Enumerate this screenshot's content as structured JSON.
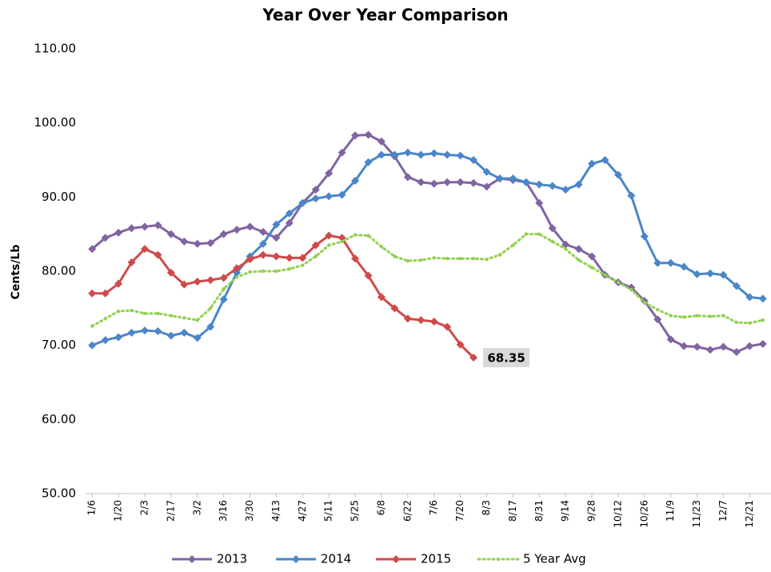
{
  "chart_data": {
    "type": "line",
    "title": "Year Over Year Comparison",
    "y_label": "Cents/Lb",
    "categories": [
      "1/6",
      null,
      "1/20",
      null,
      "2/3",
      null,
      "2/17",
      null,
      "3/2",
      null,
      "3/16",
      null,
      "3/30",
      null,
      "4/13",
      null,
      "4/27",
      null,
      "5/11",
      null,
      "5/25",
      null,
      "6/8",
      null,
      "6/22",
      null,
      "7/6",
      null,
      "7/20",
      null,
      "8/3",
      null,
      "8/17",
      null,
      "8/31",
      null,
      "9/14",
      null,
      "9/28",
      null,
      "10/12",
      null,
      "10/26",
      null,
      "11/9",
      null,
      "11/23",
      null,
      "12/7",
      null,
      "12/21",
      null
    ],
    "ylim": [
      50,
      110
    ],
    "yticks": [
      {
        "value": 50,
        "label": "50.00"
      },
      {
        "value": 60,
        "label": "60.00"
      },
      {
        "value": 70,
        "label": "70.00"
      },
      {
        "value": 80,
        "label": "80.00"
      },
      {
        "value": 90,
        "label": "90.00"
      },
      {
        "value": 100,
        "label": "100.00"
      },
      {
        "value": 110,
        "label": "110.00"
      }
    ],
    "grid": false,
    "legend": "bottom",
    "series": [
      {
        "name": "2013",
        "color": "#8064a2",
        "marker": "diamond",
        "line_style": "solid",
        "values": [
          83.0,
          84.5,
          85.2,
          85.8,
          86.0,
          86.2,
          85.0,
          84.0,
          83.7,
          83.8,
          85.0,
          85.6,
          86.0,
          85.3,
          84.5,
          86.5,
          89.2,
          91.0,
          93.2,
          96.0,
          98.3,
          98.4,
          97.5,
          95.5,
          92.7,
          92.0,
          91.8,
          92.0,
          92.0,
          91.9,
          91.4,
          92.5,
          92.3,
          92.0,
          89.2,
          85.8,
          83.6,
          83.0,
          82.0,
          79.5,
          78.5,
          77.8,
          76.0,
          73.5,
          70.8,
          69.9,
          69.8,
          69.4,
          69.8,
          69.1,
          69.9,
          70.2
        ]
      },
      {
        "name": "2014",
        "color": "#4a86c8",
        "marker": "diamond",
        "line_style": "solid",
        "values": [
          70.0,
          70.7,
          71.1,
          71.7,
          72.0,
          71.9,
          71.3,
          71.7,
          71.0,
          72.5,
          76.2,
          79.8,
          82.0,
          83.7,
          86.3,
          87.8,
          89.2,
          89.8,
          90.1,
          90.3,
          92.2,
          94.7,
          95.7,
          95.7,
          96.0,
          95.7,
          95.9,
          95.7,
          95.6,
          95.0,
          93.4,
          92.5,
          92.5,
          92.0,
          91.7,
          91.5,
          91.0,
          91.7,
          94.5,
          95.0,
          93.0,
          90.2,
          84.7,
          81.1,
          81.1,
          80.6,
          79.6,
          79.7,
          79.5,
          78.0,
          76.5,
          76.3
        ]
      },
      {
        "name": "2015",
        "color": "#d04a4a",
        "marker": "diamond",
        "line_style": "solid",
        "values": [
          77.0,
          77.0,
          78.3,
          81.2,
          83.0,
          82.2,
          79.8,
          78.2,
          78.6,
          78.8,
          79.1,
          80.4,
          81.6,
          82.2,
          82.0,
          81.8,
          81.8,
          83.5,
          84.8,
          84.5,
          81.7,
          79.4,
          76.5,
          75.0,
          73.6,
          73.4,
          73.2,
          72.5,
          70.1,
          68.35,
          null,
          null,
          null,
          null,
          null,
          null,
          null,
          null,
          null,
          null,
          null,
          null,
          null,
          null,
          null,
          null,
          null,
          null,
          null,
          null,
          null,
          null
        ],
        "value_labels": [
          null,
          null,
          null,
          null,
          null,
          null,
          null,
          null,
          null,
          null,
          null,
          null,
          null,
          null,
          null,
          null,
          null,
          null,
          null,
          null,
          null,
          null,
          null,
          null,
          null,
          null,
          null,
          null,
          null,
          "68.35",
          null,
          null,
          null,
          null,
          null,
          null,
          null,
          null,
          null,
          null,
          null,
          null,
          null,
          null,
          null,
          null,
          null,
          null,
          null,
          null,
          null,
          null
        ]
      },
      {
        "name": "5 Year Avg",
        "color": "#92d050",
        "marker": "dot",
        "line_style": "dotted",
        "values": [
          72.6,
          73.6,
          74.6,
          74.7,
          74.3,
          74.3,
          74.0,
          73.7,
          73.4,
          75.0,
          77.6,
          79.2,
          79.9,
          80.0,
          80.0,
          80.3,
          80.8,
          82.0,
          83.5,
          84.0,
          84.9,
          84.8,
          83.3,
          82.0,
          81.4,
          81.5,
          81.8,
          81.7,
          81.7,
          81.7,
          81.6,
          82.2,
          83.5,
          85.0,
          85.0,
          84.0,
          83.0,
          81.5,
          80.5,
          79.5,
          78.5,
          77.5,
          75.8,
          74.8,
          74.0,
          73.8,
          74.0,
          73.9,
          74.0,
          73.1,
          73.0,
          73.4
        ]
      }
    ]
  }
}
